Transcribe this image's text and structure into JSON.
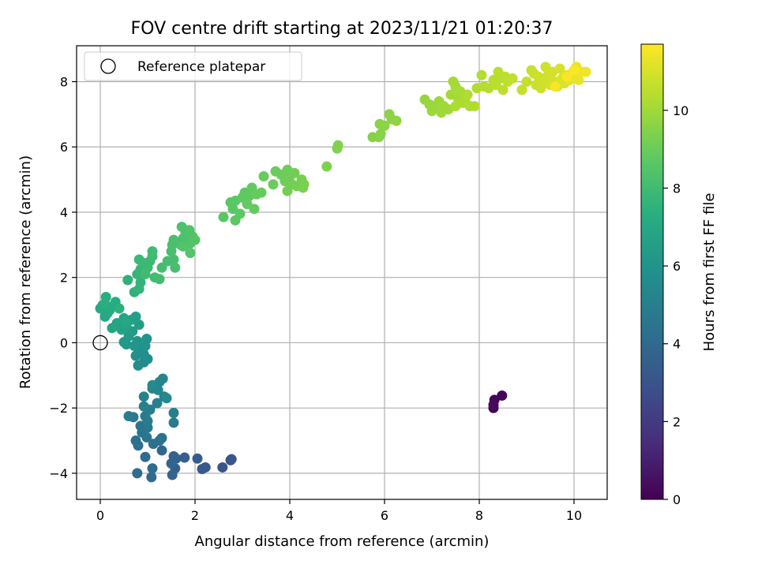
{
  "chart_data": {
    "type": "scatter",
    "title": "FOV centre drift starting at 2023/11/21 01:20:37",
    "xlabel": "Angular distance from reference (arcmin)",
    "ylabel": "Rotation from reference (arcmin)",
    "colorbar_label": "Hours from first FF file",
    "colormap": "viridis",
    "xlim": [
      -0.5,
      10.7
    ],
    "ylim": [
      -4.8,
      9.1
    ],
    "clim": [
      0,
      11.7
    ],
    "xticks": [
      "0",
      "2",
      "4",
      "6",
      "8",
      "10"
    ],
    "yticks": [
      "−4",
      "−2",
      "0",
      "2",
      "4",
      "6",
      "8"
    ],
    "colorbar_ticks": [
      "0",
      "2",
      "4",
      "6",
      "8",
      "10"
    ],
    "grid": true,
    "legend": {
      "position": "top-left",
      "entries": [
        "Reference platepar"
      ]
    },
    "reference_point": {
      "x": 0,
      "y": 0
    },
    "points": [
      {
        "x": 8.3,
        "y": -2.0,
        "t": 0.0
      },
      {
        "x": 8.32,
        "y": -1.75,
        "t": 0.1
      },
      {
        "x": 8.48,
        "y": -1.62,
        "t": 0.2
      },
      {
        "x": 8.3,
        "y": -1.9,
        "t": 0.3
      },
      {
        "x": 2.77,
        "y": -3.57,
        "t": 3.0
      },
      {
        "x": 2.75,
        "y": -3.6,
        "t": 3.05
      },
      {
        "x": 2.58,
        "y": -3.82,
        "t": 3.1
      },
      {
        "x": 2.22,
        "y": -3.82,
        "t": 3.2
      },
      {
        "x": 2.15,
        "y": -3.87,
        "t": 3.3
      },
      {
        "x": 2.05,
        "y": -3.55,
        "t": 3.4
      },
      {
        "x": 1.78,
        "y": -3.52,
        "t": 3.5
      },
      {
        "x": 1.6,
        "y": -3.55,
        "t": 3.55
      },
      {
        "x": 1.58,
        "y": -3.85,
        "t": 3.6
      },
      {
        "x": 1.55,
        "y": -3.48,
        "t": 3.7
      },
      {
        "x": 1.52,
        "y": -4.05,
        "t": 3.75
      },
      {
        "x": 1.5,
        "y": -3.7,
        "t": 3.8
      },
      {
        "x": 1.3,
        "y": -3.3,
        "t": 3.9
      },
      {
        "x": 1.08,
        "y": -4.12,
        "t": 4.0
      },
      {
        "x": 1.1,
        "y": -3.85,
        "t": 4.05
      },
      {
        "x": 0.95,
        "y": -3.5,
        "t": 4.1
      },
      {
        "x": 0.78,
        "y": -4.0,
        "t": 4.15
      },
      {
        "x": 0.8,
        "y": -3.15,
        "t": 4.2
      },
      {
        "x": 0.75,
        "y": -3.0,
        "t": 4.25
      },
      {
        "x": 1.3,
        "y": -2.92,
        "t": 4.3
      },
      {
        "x": 1.25,
        "y": -3.0,
        "t": 4.35
      },
      {
        "x": 1.12,
        "y": -3.1,
        "t": 4.4
      },
      {
        "x": 0.98,
        "y": -2.9,
        "t": 4.45
      },
      {
        "x": 0.88,
        "y": -2.75,
        "t": 4.5
      },
      {
        "x": 0.85,
        "y": -2.55,
        "t": 4.55
      },
      {
        "x": 1.0,
        "y": -2.6,
        "t": 4.6
      },
      {
        "x": 0.95,
        "y": -2.25,
        "t": 4.7
      },
      {
        "x": 0.7,
        "y": -2.28,
        "t": 4.75
      },
      {
        "x": 0.6,
        "y": -2.25,
        "t": 4.8
      },
      {
        "x": 1.0,
        "y": -2.4,
        "t": 4.85
      },
      {
        "x": 1.55,
        "y": -2.45,
        "t": 4.9
      },
      {
        "x": 1.55,
        "y": -2.15,
        "t": 4.95
      },
      {
        "x": 1.05,
        "y": -2.05,
        "t": 5.0
      },
      {
        "x": 0.92,
        "y": -1.95,
        "t": 5.05
      },
      {
        "x": 1.2,
        "y": -1.85,
        "t": 5.1
      },
      {
        "x": 1.35,
        "y": -1.65,
        "t": 5.15
      },
      {
        "x": 0.92,
        "y": -1.65,
        "t": 5.2
      },
      {
        "x": 1.1,
        "y": -1.4,
        "t": 5.25
      },
      {
        "x": 1.25,
        "y": -1.2,
        "t": 5.3
      },
      {
        "x": 1.32,
        "y": -1.1,
        "t": 5.35
      },
      {
        "x": 1.22,
        "y": -1.45,
        "t": 5.4
      },
      {
        "x": 1.4,
        "y": -1.7,
        "t": 5.45
      },
      {
        "x": 1.1,
        "y": -1.3,
        "t": 5.5
      },
      {
        "x": 0.92,
        "y": -0.6,
        "t": 5.6
      },
      {
        "x": 1.0,
        "y": -0.5,
        "t": 5.65
      },
      {
        "x": 0.8,
        "y": -0.7,
        "t": 5.7
      },
      {
        "x": 0.75,
        "y": -0.4,
        "t": 5.75
      },
      {
        "x": 0.92,
        "y": -0.35,
        "t": 5.8
      },
      {
        "x": 0.82,
        "y": -0.2,
        "t": 5.85
      },
      {
        "x": 0.95,
        "y": -0.1,
        "t": 5.9
      },
      {
        "x": 0.98,
        "y": 0.12,
        "t": 6.0
      },
      {
        "x": 0.78,
        "y": 0.05,
        "t": 6.05
      },
      {
        "x": 0.72,
        "y": -0.1,
        "t": 6.1
      },
      {
        "x": 0.55,
        "y": -0.05,
        "t": 6.15
      },
      {
        "x": 0.5,
        "y": 0.02,
        "t": 6.2
      },
      {
        "x": 0.6,
        "y": 0.2,
        "t": 6.3
      },
      {
        "x": 0.68,
        "y": 0.35,
        "t": 6.35
      },
      {
        "x": 0.82,
        "y": 0.55,
        "t": 6.45
      },
      {
        "x": 0.75,
        "y": 0.8,
        "t": 6.55
      },
      {
        "x": 0.65,
        "y": 0.7,
        "t": 6.6
      },
      {
        "x": 0.55,
        "y": 0.5,
        "t": 6.65
      },
      {
        "x": 0.45,
        "y": 0.4,
        "t": 6.7
      },
      {
        "x": 0.35,
        "y": 0.6,
        "t": 6.75
      },
      {
        "x": 0.25,
        "y": 0.45,
        "t": 6.8
      },
      {
        "x": 0.5,
        "y": 0.75,
        "t": 6.85
      },
      {
        "x": 0.55,
        "y": 0.6,
        "t": 6.9
      },
      {
        "x": 0.1,
        "y": 0.8,
        "t": 6.95
      },
      {
        "x": 0.15,
        "y": 0.9,
        "t": 7.0
      },
      {
        "x": 0.0,
        "y": 1.05,
        "t": 7.05
      },
      {
        "x": 0.05,
        "y": 1.15,
        "t": 7.1
      },
      {
        "x": 0.2,
        "y": 1.0,
        "t": 7.15
      },
      {
        "x": 0.28,
        "y": 1.12,
        "t": 7.2
      },
      {
        "x": 0.32,
        "y": 1.25,
        "t": 7.25
      },
      {
        "x": 0.12,
        "y": 1.4,
        "t": 7.3
      },
      {
        "x": 0.1,
        "y": 1.2,
        "t": 7.35
      },
      {
        "x": 0.4,
        "y": 1.05,
        "t": 7.4
      },
      {
        "x": 0.58,
        "y": 1.92,
        "t": 7.5
      },
      {
        "x": 0.72,
        "y": 1.55,
        "t": 7.55
      },
      {
        "x": 0.82,
        "y": 1.65,
        "t": 7.6
      },
      {
        "x": 0.85,
        "y": 1.85,
        "t": 7.65
      },
      {
        "x": 0.78,
        "y": 2.1,
        "t": 7.7
      },
      {
        "x": 0.85,
        "y": 2.25,
        "t": 7.75
      },
      {
        "x": 0.9,
        "y": 2.45,
        "t": 7.8
      },
      {
        "x": 0.82,
        "y": 2.55,
        "t": 7.85
      },
      {
        "x": 1.0,
        "y": 2.3,
        "t": 7.9
      },
      {
        "x": 1.05,
        "y": 2.5,
        "t": 7.92
      },
      {
        "x": 1.1,
        "y": 2.65,
        "t": 7.95
      },
      {
        "x": 1.1,
        "y": 2.8,
        "t": 8.0
      },
      {
        "x": 0.95,
        "y": 2.1,
        "t": 8.02
      },
      {
        "x": 1.15,
        "y": 2.0,
        "t": 8.05
      },
      {
        "x": 1.25,
        "y": 1.95,
        "t": 8.08
      },
      {
        "x": 1.3,
        "y": 2.3,
        "t": 8.1
      },
      {
        "x": 1.42,
        "y": 2.5,
        "t": 8.12
      },
      {
        "x": 1.55,
        "y": 2.55,
        "t": 8.15
      },
      {
        "x": 1.58,
        "y": 2.3,
        "t": 8.18
      },
      {
        "x": 1.5,
        "y": 2.8,
        "t": 8.2
      },
      {
        "x": 1.52,
        "y": 3.0,
        "t": 8.22
      },
      {
        "x": 1.55,
        "y": 3.15,
        "t": 8.25
      },
      {
        "x": 1.7,
        "y": 3.0,
        "t": 8.28
      },
      {
        "x": 1.75,
        "y": 3.2,
        "t": 8.3
      },
      {
        "x": 1.8,
        "y": 3.35,
        "t": 8.32
      },
      {
        "x": 1.72,
        "y": 3.55,
        "t": 8.35
      },
      {
        "x": 1.88,
        "y": 3.45,
        "t": 8.38
      },
      {
        "x": 1.95,
        "y": 3.25,
        "t": 8.4
      },
      {
        "x": 1.9,
        "y": 3.05,
        "t": 8.42
      },
      {
        "x": 1.75,
        "y": 2.95,
        "t": 8.45
      },
      {
        "x": 1.9,
        "y": 2.75,
        "t": 8.48
      },
      {
        "x": 2.0,
        "y": 3.15,
        "t": 8.5
      },
      {
        "x": 2.6,
        "y": 3.85,
        "t": 8.6
      },
      {
        "x": 2.75,
        "y": 4.3,
        "t": 8.62
      },
      {
        "x": 2.85,
        "y": 4.35,
        "t": 8.65
      },
      {
        "x": 2.8,
        "y": 4.1,
        "t": 8.68
      },
      {
        "x": 2.95,
        "y": 3.95,
        "t": 8.7
      },
      {
        "x": 2.85,
        "y": 3.75,
        "t": 8.72
      },
      {
        "x": 3.0,
        "y": 4.45,
        "t": 8.75
      },
      {
        "x": 3.05,
        "y": 4.6,
        "t": 8.78
      },
      {
        "x": 3.15,
        "y": 4.5,
        "t": 8.8
      },
      {
        "x": 3.2,
        "y": 4.75,
        "t": 8.82
      },
      {
        "x": 3.1,
        "y": 4.25,
        "t": 8.85
      },
      {
        "x": 3.25,
        "y": 4.1,
        "t": 8.88
      },
      {
        "x": 3.3,
        "y": 4.55,
        "t": 8.9
      },
      {
        "x": 3.4,
        "y": 4.6,
        "t": 8.92
      },
      {
        "x": 3.45,
        "y": 5.1,
        "t": 8.95
      },
      {
        "x": 3.65,
        "y": 4.85,
        "t": 8.98
      },
      {
        "x": 3.7,
        "y": 5.25,
        "t": 9.0
      },
      {
        "x": 3.82,
        "y": 5.15,
        "t": 9.02
      },
      {
        "x": 3.95,
        "y": 5.3,
        "t": 9.05
      },
      {
        "x": 3.9,
        "y": 4.95,
        "t": 9.08
      },
      {
        "x": 4.0,
        "y": 5.1,
        "t": 9.1
      },
      {
        "x": 4.1,
        "y": 5.2,
        "t": 9.12
      },
      {
        "x": 4.05,
        "y": 4.85,
        "t": 9.15
      },
      {
        "x": 3.95,
        "y": 4.65,
        "t": 9.18
      },
      {
        "x": 4.15,
        "y": 4.8,
        "t": 9.2
      },
      {
        "x": 4.25,
        "y": 5.0,
        "t": 9.22
      },
      {
        "x": 4.28,
        "y": 4.75,
        "t": 9.25
      },
      {
        "x": 4.3,
        "y": 4.85,
        "t": 9.28
      },
      {
        "x": 4.78,
        "y": 5.4,
        "t": 9.35
      },
      {
        "x": 5.0,
        "y": 5.95,
        "t": 9.4
      },
      {
        "x": 5.02,
        "y": 6.05,
        "t": 9.42
      },
      {
        "x": 5.75,
        "y": 6.3,
        "t": 9.5
      },
      {
        "x": 5.88,
        "y": 6.3,
        "t": 9.52
      },
      {
        "x": 5.92,
        "y": 6.4,
        "t": 9.55
      },
      {
        "x": 5.9,
        "y": 6.7,
        "t": 9.58
      },
      {
        "x": 6.0,
        "y": 6.65,
        "t": 9.6
      },
      {
        "x": 6.1,
        "y": 7.0,
        "t": 9.62
      },
      {
        "x": 6.15,
        "y": 6.85,
        "t": 9.65
      },
      {
        "x": 6.25,
        "y": 6.8,
        "t": 9.68
      },
      {
        "x": 6.85,
        "y": 7.45,
        "t": 9.8
      },
      {
        "x": 6.95,
        "y": 7.3,
        "t": 9.85
      },
      {
        "x": 7.0,
        "y": 7.1,
        "t": 9.9
      },
      {
        "x": 7.1,
        "y": 7.2,
        "t": 9.92
      },
      {
        "x": 7.15,
        "y": 7.4,
        "t": 9.95
      },
      {
        "x": 7.2,
        "y": 7.05,
        "t": 9.98
      },
      {
        "x": 7.25,
        "y": 7.25,
        "t": 10.0
      },
      {
        "x": 7.35,
        "y": 7.15,
        "t": 10.02
      },
      {
        "x": 7.4,
        "y": 7.6,
        "t": 10.05
      },
      {
        "x": 7.45,
        "y": 8.0,
        "t": 10.08
      },
      {
        "x": 7.5,
        "y": 7.85,
        "t": 10.1
      },
      {
        "x": 7.55,
        "y": 7.5,
        "t": 10.12
      },
      {
        "x": 7.6,
        "y": 7.7,
        "t": 10.15
      },
      {
        "x": 7.65,
        "y": 7.35,
        "t": 10.18
      },
      {
        "x": 7.5,
        "y": 7.25,
        "t": 10.2
      },
      {
        "x": 7.7,
        "y": 7.45,
        "t": 10.22
      },
      {
        "x": 7.75,
        "y": 7.6,
        "t": 10.25
      },
      {
        "x": 7.8,
        "y": 7.25,
        "t": 10.28
      },
      {
        "x": 7.9,
        "y": 7.25,
        "t": 10.3
      },
      {
        "x": 7.95,
        "y": 7.8,
        "t": 10.32
      },
      {
        "x": 8.05,
        "y": 8.2,
        "t": 10.35
      },
      {
        "x": 8.1,
        "y": 7.85,
        "t": 10.38
      },
      {
        "x": 8.2,
        "y": 7.8,
        "t": 10.4
      },
      {
        "x": 8.3,
        "y": 8.05,
        "t": 10.42
      },
      {
        "x": 8.35,
        "y": 7.9,
        "t": 10.45
      },
      {
        "x": 8.4,
        "y": 8.3,
        "t": 10.48
      },
      {
        "x": 8.45,
        "y": 8.1,
        "t": 10.5
      },
      {
        "x": 8.55,
        "y": 8.15,
        "t": 10.52
      },
      {
        "x": 8.5,
        "y": 7.75,
        "t": 10.55
      },
      {
        "x": 8.6,
        "y": 8.0,
        "t": 10.58
      },
      {
        "x": 8.7,
        "y": 8.1,
        "t": 10.6
      },
      {
        "x": 8.9,
        "y": 7.75,
        "t": 10.65
      },
      {
        "x": 9.0,
        "y": 8.0,
        "t": 10.7
      },
      {
        "x": 9.1,
        "y": 8.35,
        "t": 10.72
      },
      {
        "x": 9.15,
        "y": 8.25,
        "t": 10.75
      },
      {
        "x": 9.2,
        "y": 7.9,
        "t": 10.78
      },
      {
        "x": 9.25,
        "y": 8.15,
        "t": 10.8
      },
      {
        "x": 9.3,
        "y": 7.8,
        "t": 10.82
      },
      {
        "x": 9.35,
        "y": 8.0,
        "t": 10.85
      },
      {
        "x": 9.4,
        "y": 8.45,
        "t": 10.88
      },
      {
        "x": 9.45,
        "y": 8.2,
        "t": 10.9
      },
      {
        "x": 9.5,
        "y": 7.9,
        "t": 10.92
      },
      {
        "x": 9.55,
        "y": 8.3,
        "t": 10.95
      },
      {
        "x": 9.6,
        "y": 8.0,
        "t": 10.98
      },
      {
        "x": 9.65,
        "y": 7.85,
        "t": 11.0
      },
      {
        "x": 9.7,
        "y": 8.4,
        "t": 11.02
      },
      {
        "x": 9.75,
        "y": 8.1,
        "t": 11.05
      },
      {
        "x": 9.8,
        "y": 7.95,
        "t": 11.08
      },
      {
        "x": 9.85,
        "y": 8.2,
        "t": 11.1
      },
      {
        "x": 9.9,
        "y": 8.05,
        "t": 11.15
      },
      {
        "x": 9.95,
        "y": 8.25,
        "t": 11.2
      },
      {
        "x": 10.0,
        "y": 8.1,
        "t": 11.25
      },
      {
        "x": 10.05,
        "y": 8.45,
        "t": 11.3
      },
      {
        "x": 10.1,
        "y": 8.05,
        "t": 11.35
      },
      {
        "x": 10.15,
        "y": 8.3,
        "t": 11.4
      },
      {
        "x": 10.25,
        "y": 8.3,
        "t": 11.5
      },
      {
        "x": 9.6,
        "y": 7.85,
        "t": 11.55
      },
      {
        "x": 9.85,
        "y": 8.15,
        "t": 11.6
      },
      {
        "x": 10.0,
        "y": 8.35,
        "t": 11.65
      }
    ]
  }
}
